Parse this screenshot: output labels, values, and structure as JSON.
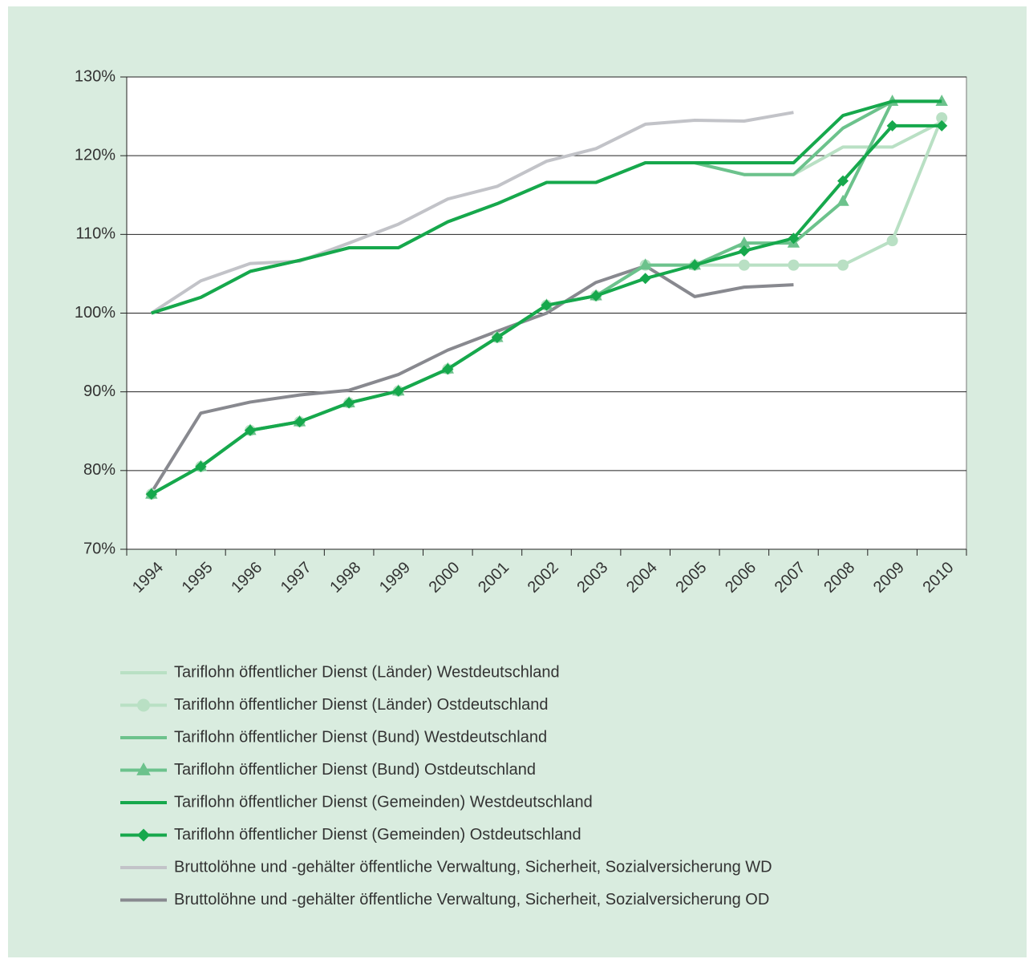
{
  "chart_data": {
    "type": "line",
    "categories": [
      "1994",
      "1995",
      "1996",
      "1997",
      "1998",
      "1999",
      "2000",
      "2001",
      "2002",
      "2003",
      "2004",
      "2005",
      "2006",
      "2007",
      "2008",
      "2009",
      "2010"
    ],
    "ylim": [
      70,
      130
    ],
    "yticks": [
      {
        "value": 70,
        "label": "70%"
      },
      {
        "value": 80,
        "label": "80%"
      },
      {
        "value": 90,
        "label": "90%"
      },
      {
        "value": 100,
        "label": "100%"
      },
      {
        "value": 110,
        "label": "110%"
      },
      {
        "value": 120,
        "label": "120%"
      },
      {
        "value": 130,
        "label": "130%"
      }
    ],
    "grid": true,
    "series": [
      {
        "name": "Tariflohn öffentlicher Dienst (Länder) Westdeutschland",
        "color": "#b9e0c4",
        "marker": "none",
        "values": [
          100,
          102,
          105.3,
          106.7,
          108.3,
          108.3,
          111.6,
          113.9,
          116.6,
          116.6,
          119.1,
          119.1,
          117.6,
          117.6,
          121.1,
          121.1,
          124.3
        ]
      },
      {
        "name": "Tariflohn öffentlicher Dienst (Länder) Ostdeutschland",
        "color": "#b9e0c4",
        "marker": "circle",
        "values": [
          77,
          80.5,
          85.1,
          86.2,
          88.6,
          90.1,
          92.9,
          96.9,
          101,
          102.2,
          106.1,
          106.1,
          106.1,
          106.1,
          106.1,
          109.2,
          124.8
        ]
      },
      {
        "name": "Tariflohn öffentlicher Dienst (Bund) Westdeutschland",
        "color": "#6cc28c",
        "marker": "none",
        "values": [
          100,
          102,
          105.3,
          106.7,
          108.3,
          108.3,
          111.6,
          113.9,
          116.6,
          116.6,
          119.1,
          119.1,
          117.6,
          117.6,
          123.5,
          126.9,
          126.9
        ]
      },
      {
        "name": "Tariflohn öffentlicher Dienst (Bund) Ostdeutschland",
        "color": "#6cc28c",
        "marker": "triangle",
        "values": [
          77,
          80.5,
          85.1,
          86.2,
          88.6,
          90.1,
          92.9,
          96.9,
          101,
          102.2,
          106.1,
          106.1,
          108.9,
          108.9,
          114.2,
          126.9,
          126.9
        ]
      },
      {
        "name": "Tariflohn öffentlicher Dienst (Gemeinden) Westdeutschland",
        "color": "#16a84c",
        "marker": "none",
        "values": [
          100,
          102,
          105.3,
          106.7,
          108.3,
          108.3,
          111.6,
          113.9,
          116.6,
          116.6,
          119.1,
          119.1,
          119.1,
          119.1,
          125.1,
          126.9,
          126.9
        ]
      },
      {
        "name": "Tariflohn öffentlicher Dienst (Gemeinden) Ostdeutschland",
        "color": "#16a84c",
        "marker": "diamond",
        "values": [
          77,
          80.5,
          85.1,
          86.2,
          88.6,
          90.1,
          92.9,
          96.9,
          101,
          102.2,
          104.4,
          106.1,
          107.9,
          109.5,
          116.8,
          123.8,
          123.8
        ]
      },
      {
        "name": "Bruttolöhne und -gehälter öffentliche Verwaltung, Sicherheit, Sozialversicherung WD",
        "color": "#c2c3c8",
        "marker": "none",
        "values": [
          100,
          104.1,
          106.3,
          106.6,
          108.9,
          111.3,
          114.5,
          116.1,
          119.3,
          120.9,
          124,
          124.5,
          124.4,
          125.5,
          null,
          null,
          null
        ]
      },
      {
        "name": "Bruttolöhne und -gehälter öffentliche Verwaltung, Sicherheit, Sozialversicherung OD",
        "color": "#88898f",
        "marker": "none",
        "values": [
          77.2,
          87.3,
          88.7,
          89.6,
          90.2,
          92.2,
          95.3,
          97.7,
          100,
          103.9,
          106,
          102.1,
          103.3,
          103.6,
          null,
          null,
          null
        ]
      }
    ]
  }
}
